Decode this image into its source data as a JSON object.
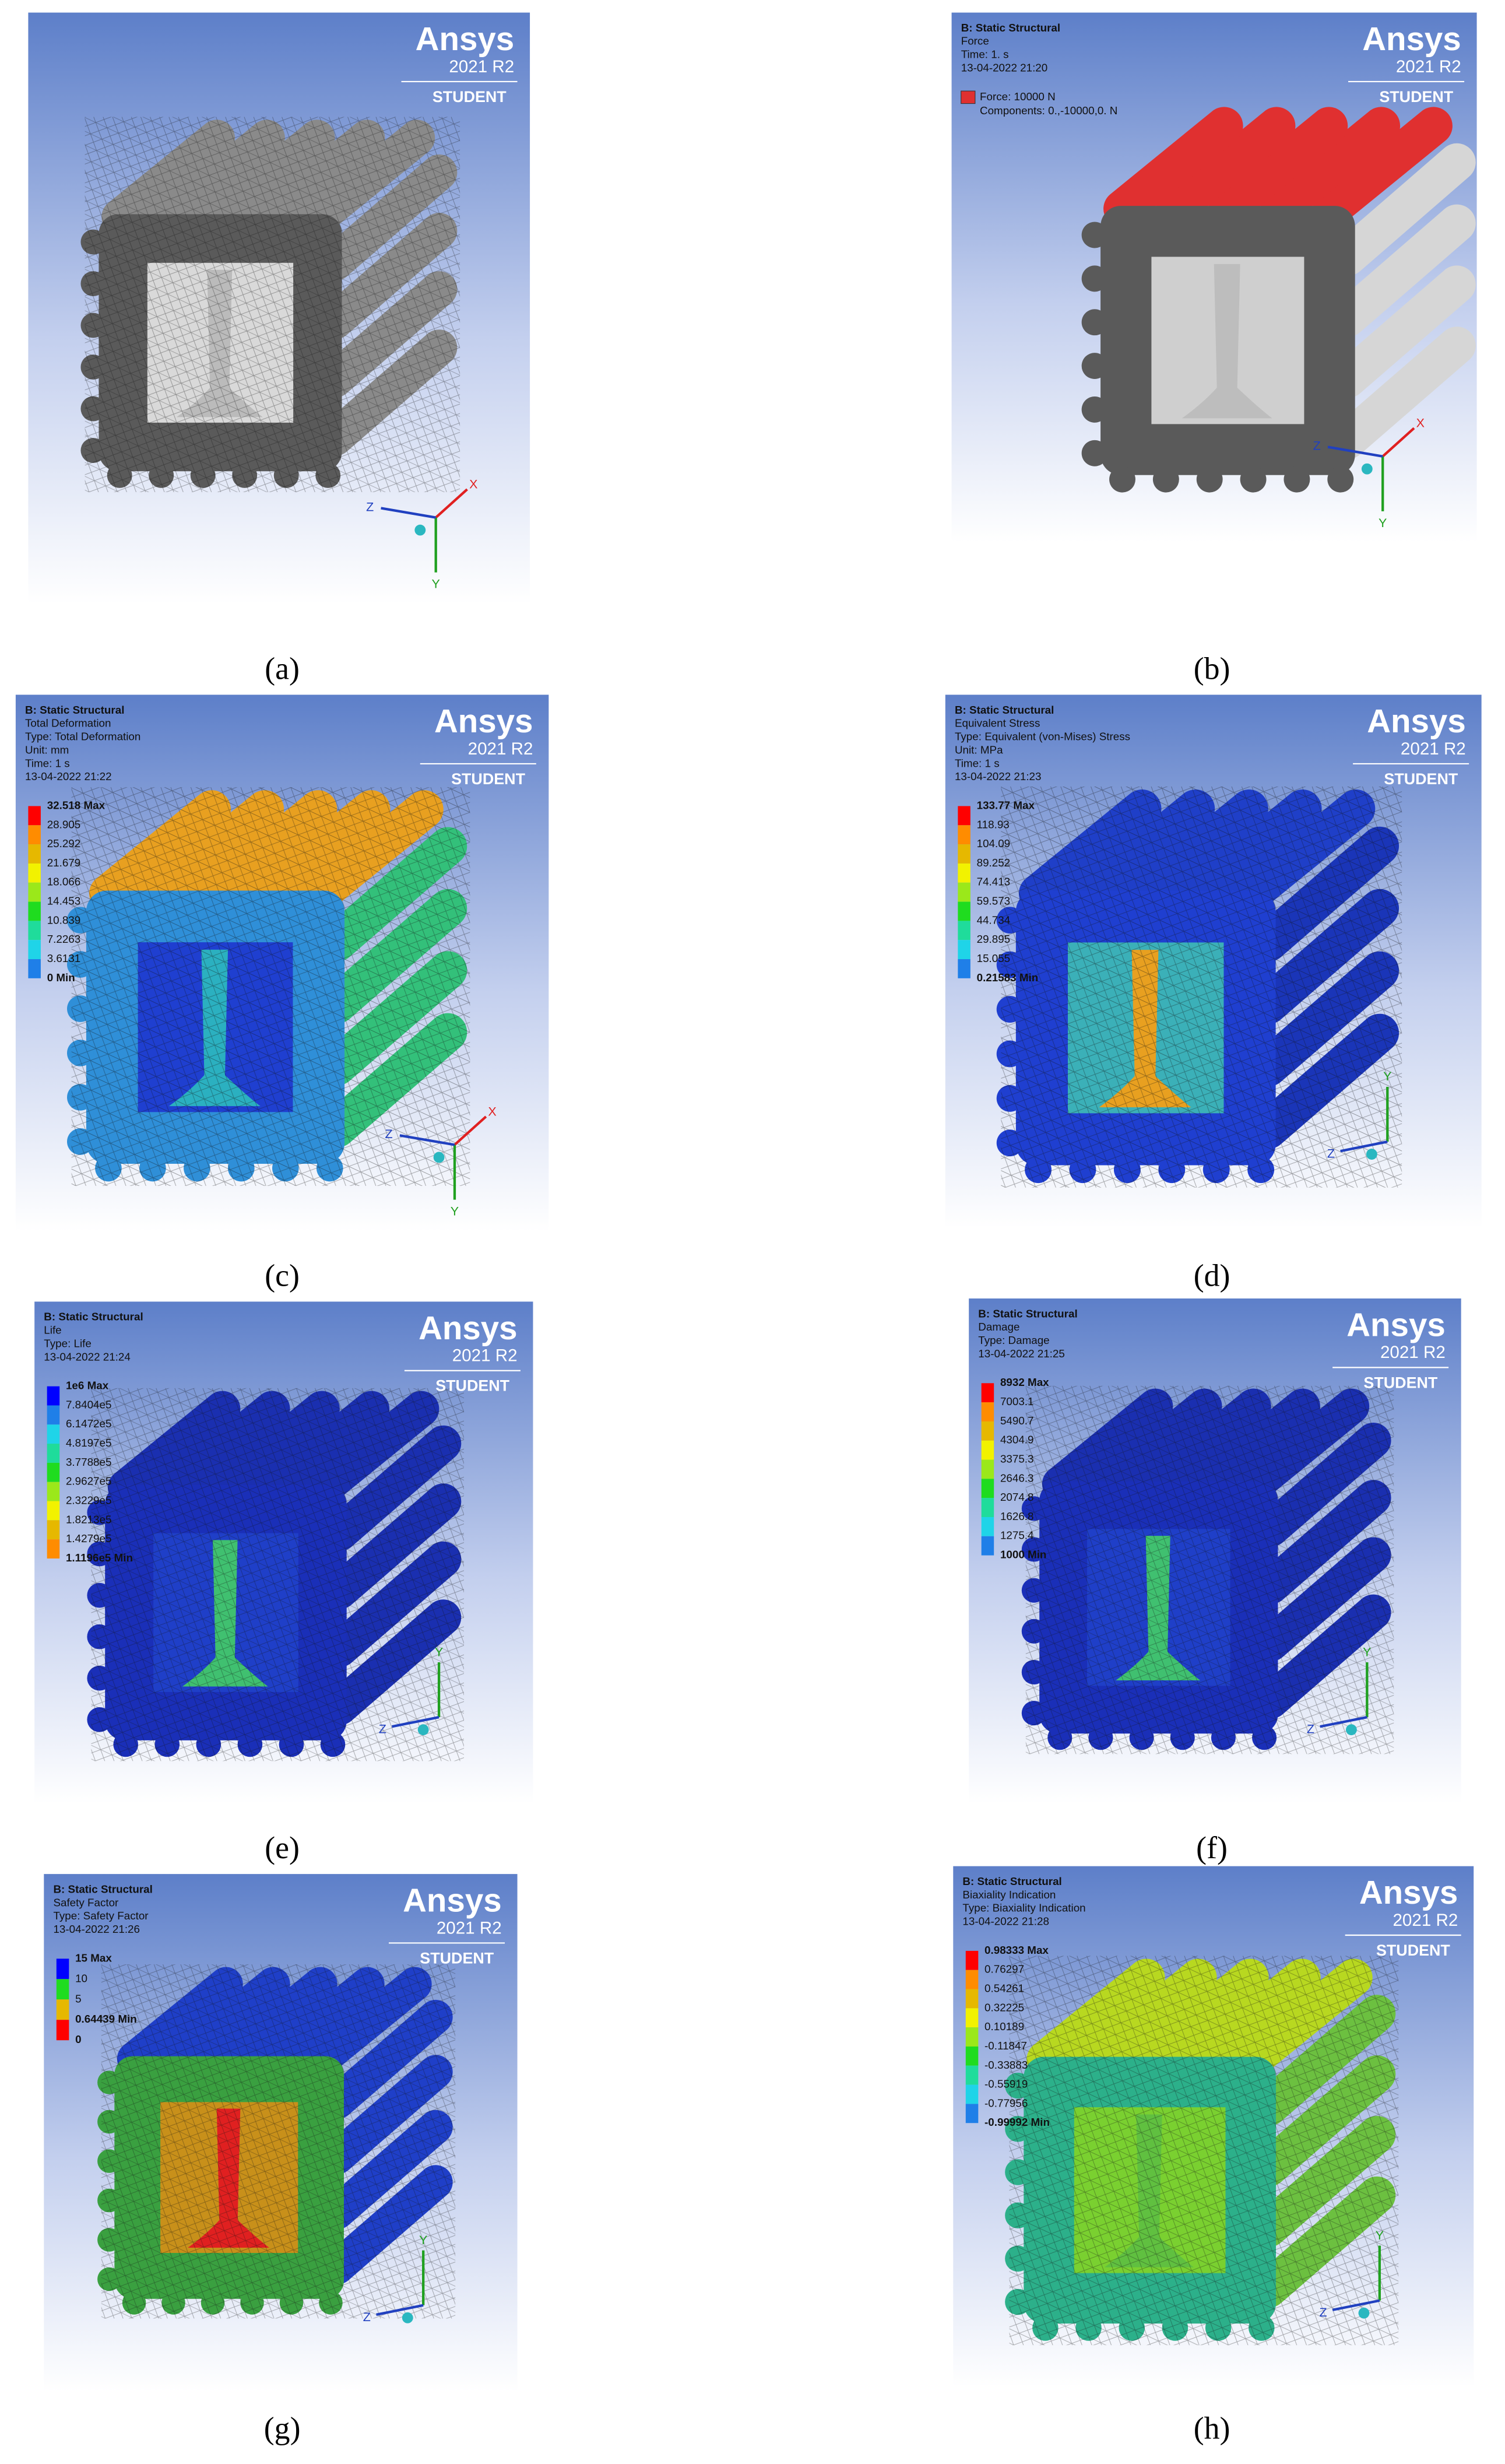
{
  "panels": [
    {
      "label": "(a)",
      "header": [],
      "legend": [],
      "logo": [
        "Ansys",
        "2021 R2",
        "STUDENT"
      ],
      "triad": [
        "X",
        "Y",
        "Z"
      ]
    },
    {
      "label": "(b)",
      "header": [
        "B: Static Structural",
        "Force",
        "Time: 1. s",
        "13-04-2022 21:20"
      ],
      "legend": [
        "Force: 10000 N",
        "Components: 0.,-10000,0. N"
      ],
      "logo": [
        "Ansys",
        "2021 R2",
        "STUDENT"
      ],
      "triad": [
        "X",
        "Y",
        "Z"
      ]
    },
    {
      "label": "(c)",
      "header": [
        "B: Static Structural",
        "Total Deformation",
        "Type: Total Deformation",
        "Unit: mm",
        "Time: 1 s",
        "13-04-2022 21:22"
      ],
      "legend": [
        "32.518 Max",
        "28.905",
        "25.292",
        "21.679",
        "18.066",
        "14.453",
        "10.839",
        "7.2263",
        "3.6131",
        "0 Min"
      ],
      "logo": [
        "Ansys",
        "2021 R2",
        "STUDENT"
      ],
      "triad": [
        "X",
        "Y",
        "Z"
      ]
    },
    {
      "label": "(d)",
      "header": [
        "B: Static Structural",
        "Equivalent Stress",
        "Type: Equivalent (von-Mises) Stress",
        "Unit: MPa",
        "Time: 1 s",
        "13-04-2022 21:23"
      ],
      "legend": [
        "133.77 Max",
        "118.93",
        "104.09",
        "89.252",
        "74.413",
        "59.573",
        "44.734",
        "29.895",
        "15.055",
        "0.21583 Min"
      ],
      "logo": [
        "Ansys",
        "2021 R2",
        "STUDENT"
      ],
      "triad": [
        "Y",
        "Z"
      ]
    },
    {
      "label": "(e)",
      "header": [
        "B: Static Structural",
        "Life",
        "Type: Life",
        "13-04-2022 21:24"
      ],
      "legend": [
        "1e6 Max",
        "7.8404e5",
        "6.1472e5",
        "4.8197e5",
        "3.7788e5",
        "2.9627e5",
        "2.3229e5",
        "1.8213e5",
        "1.4279e5",
        "1.1196e5 Min"
      ],
      "logo": [
        "Ansys",
        "2021 R2",
        "STUDENT"
      ],
      "triad": [
        "Y",
        "Z"
      ]
    },
    {
      "label": "(f)",
      "header": [
        "B: Static Structural",
        "Damage",
        "Type: Damage",
        "13-04-2022 21:25"
      ],
      "legend": [
        "8932 Max",
        "7003.1",
        "5490.7",
        "4304.9",
        "3375.3",
        "2646.3",
        "2074.8",
        "1626.8",
        "1275.4",
        "1000 Min"
      ],
      "logo": [
        "Ansys",
        "2021 R2",
        "STUDENT"
      ],
      "triad": [
        "Y",
        "Z"
      ]
    },
    {
      "label": "(g)",
      "header": [
        "B: Static Structural",
        "Safety Factor",
        "Type: Safety Factor",
        "13-04-2022 21:26"
      ],
      "legend": [
        "15 Max",
        "10",
        "5",
        "0.64439 Min",
        "0"
      ],
      "logo": [
        "Ansys",
        "2021 R2",
        "STUDENT"
      ],
      "triad": [
        "Y",
        "Z"
      ]
    },
    {
      "label": "(h)",
      "header": [
        "B: Static Structural",
        "Biaxiality Indication",
        "Type: Biaxiality Indication",
        "13-04-2022 21:28"
      ],
      "legend": [
        "0.98333 Max",
        "0.76297",
        "0.54261",
        "0.32225",
        "0.10189",
        "-0.11847",
        "-0.33883",
        "-0.55919",
        "-0.77956",
        "-0.99992 Min"
      ],
      "logo": [
        "Ansys",
        "2021 R2",
        "STUDENT"
      ],
      "triad": [
        "Y",
        "Z"
      ]
    }
  ]
}
